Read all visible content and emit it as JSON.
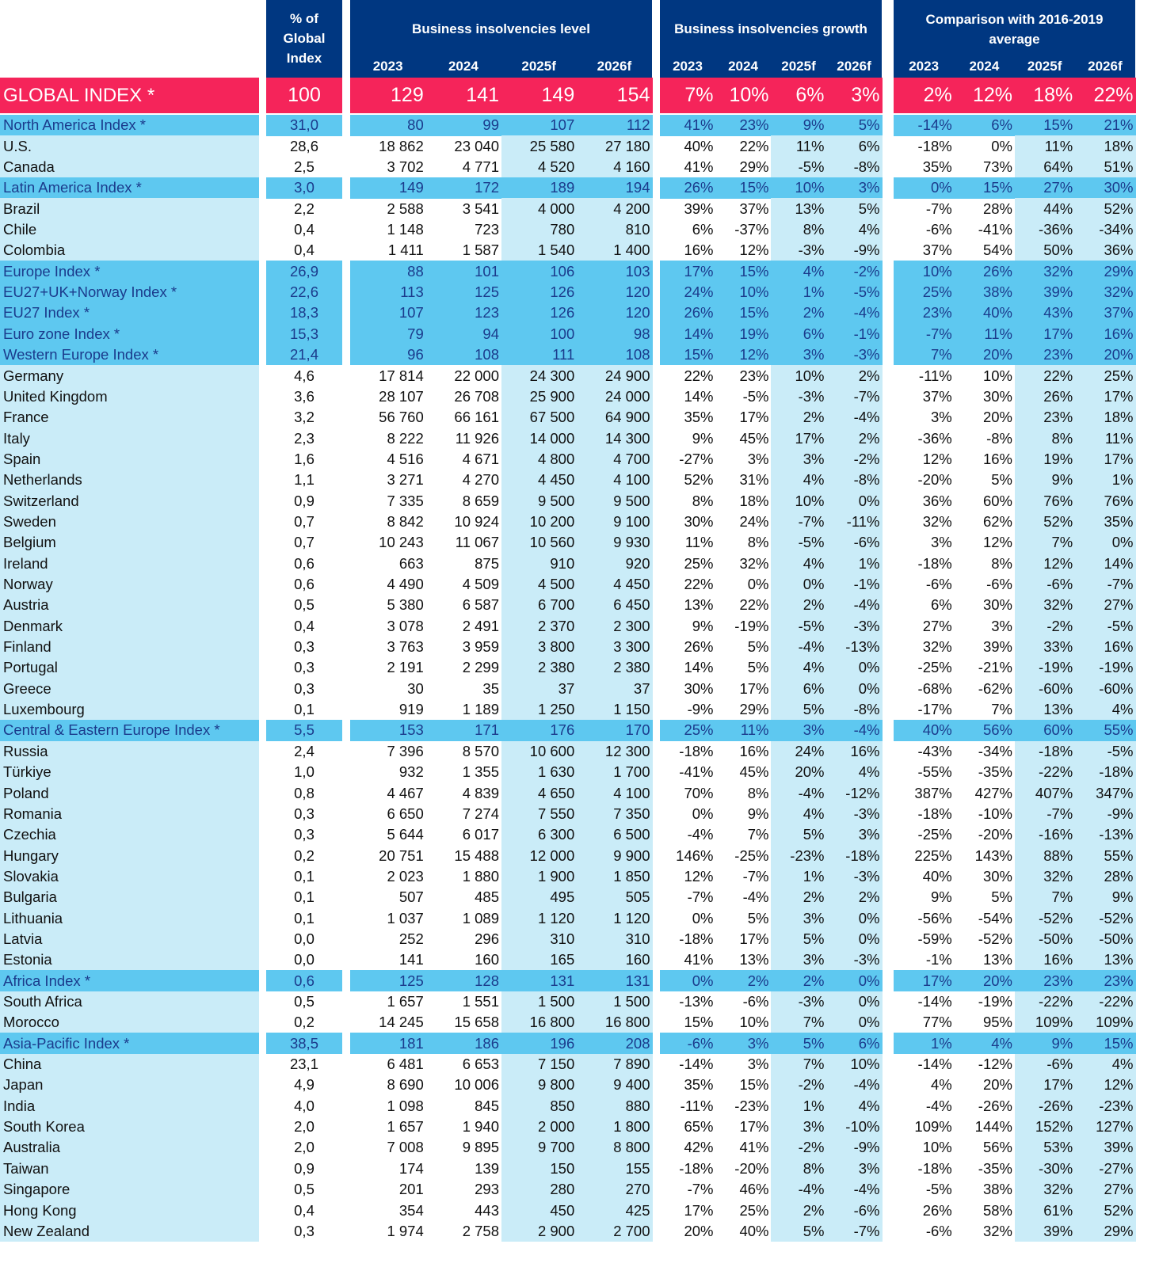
{
  "header": {
    "share_label": [
      "% of",
      "Global",
      "Index"
    ],
    "groups": [
      {
        "title": [
          "Business insolvencies level"
        ],
        "years": [
          "2023",
          "2024",
          "2025f",
          "2026f"
        ]
      },
      {
        "title": [
          "Business insolvencies growth"
        ],
        "years": [
          "2023",
          "2024",
          "2025f",
          "2026f"
        ]
      },
      {
        "title": [
          "Comparison with 2016-2019",
          "average"
        ],
        "years": [
          "2023",
          "2024",
          "2025f",
          "2026f"
        ]
      }
    ]
  },
  "colors": {
    "header": "#003781",
    "global_row": "#f5245a",
    "index_row": "#5ec8f0",
    "country_shade": "#caecf8",
    "index_text": "#1b3b8c"
  },
  "global": {
    "name": "GLOBAL INDEX *",
    "share": "100",
    "level": [
      "129",
      "141",
      "149",
      "154"
    ],
    "growth": [
      "7%",
      "10%",
      "6%",
      "3%"
    ],
    "vs_avg": [
      "2%",
      "12%",
      "18%",
      "22%"
    ]
  },
  "rows": [
    {
      "name": "North America Index *",
      "index": true,
      "share": "31,0",
      "level": [
        "80",
        "99",
        "107",
        "112"
      ],
      "growth": [
        "41%",
        "23%",
        "9%",
        "5%"
      ],
      "vs_avg": [
        "-14%",
        "6%",
        "15%",
        "21%"
      ]
    },
    {
      "name": "U.S.",
      "index": false,
      "share": "28,6",
      "level": [
        "18 862",
        "23 040",
        "25 580",
        "27 180"
      ],
      "growth": [
        "40%",
        "22%",
        "11%",
        "6%"
      ],
      "vs_avg": [
        "-18%",
        "0%",
        "11%",
        "18%"
      ]
    },
    {
      "name": "Canada",
      "index": false,
      "share": "2,5",
      "level": [
        "3 702",
        "4 771",
        "4 520",
        "4 160"
      ],
      "growth": [
        "41%",
        "29%",
        "-5%",
        "-8%"
      ],
      "vs_avg": [
        "35%",
        "73%",
        "64%",
        "51%"
      ]
    },
    {
      "name": "Latin America Index *",
      "index": true,
      "share": "3,0",
      "level": [
        "149",
        "172",
        "189",
        "194"
      ],
      "growth": [
        "26%",
        "15%",
        "10%",
        "3%"
      ],
      "vs_avg": [
        "0%",
        "15%",
        "27%",
        "30%"
      ]
    },
    {
      "name": "Brazil",
      "index": false,
      "share": "2,2",
      "level": [
        "2 588",
        "3 541",
        "4 000",
        "4 200"
      ],
      "growth": [
        "39%",
        "37%",
        "13%",
        "5%"
      ],
      "vs_avg": [
        "-7%",
        "28%",
        "44%",
        "52%"
      ]
    },
    {
      "name": "Chile",
      "index": false,
      "share": "0,4",
      "level": [
        "1 148",
        "723",
        "780",
        "810"
      ],
      "growth": [
        "6%",
        "-37%",
        "8%",
        "4%"
      ],
      "vs_avg": [
        "-6%",
        "-41%",
        "-36%",
        "-34%"
      ]
    },
    {
      "name": "Colombia",
      "index": false,
      "share": "0,4",
      "level": [
        "1 411",
        "1 587",
        "1 540",
        "1 400"
      ],
      "growth": [
        "16%",
        "12%",
        "-3%",
        "-9%"
      ],
      "vs_avg": [
        "37%",
        "54%",
        "50%",
        "36%"
      ]
    },
    {
      "name": "Europe Index *",
      "index": true,
      "share": "26,9",
      "level": [
        "88",
        "101",
        "106",
        "103"
      ],
      "growth": [
        "17%",
        "15%",
        "4%",
        "-2%"
      ],
      "vs_avg": [
        "10%",
        "26%",
        "32%",
        "29%"
      ]
    },
    {
      "name": "EU27+UK+Norway Index *",
      "index": true,
      "share": "22,6",
      "level": [
        "113",
        "125",
        "126",
        "120"
      ],
      "growth": [
        "24%",
        "10%",
        "1%",
        "-5%"
      ],
      "vs_avg": [
        "25%",
        "38%",
        "39%",
        "32%"
      ]
    },
    {
      "name": "EU27 Index *",
      "index": true,
      "share": "18,3",
      "level": [
        "107",
        "123",
        "126",
        "120"
      ],
      "growth": [
        "26%",
        "15%",
        "2%",
        "-4%"
      ],
      "vs_avg": [
        "23%",
        "40%",
        "43%",
        "37%"
      ]
    },
    {
      "name": "Euro zone Index *",
      "index": true,
      "share": "15,3",
      "level": [
        "79",
        "94",
        "100",
        "98"
      ],
      "growth": [
        "14%",
        "19%",
        "6%",
        "-1%"
      ],
      "vs_avg": [
        "-7%",
        "11%",
        "17%",
        "16%"
      ]
    },
    {
      "name": "Western Europe Index *",
      "index": true,
      "share": "21,4",
      "level": [
        "96",
        "108",
        "111",
        "108"
      ],
      "growth": [
        "15%",
        "12%",
        "3%",
        "-3%"
      ],
      "vs_avg": [
        "7%",
        "20%",
        "23%",
        "20%"
      ]
    },
    {
      "name": "Germany",
      "index": false,
      "share": "4,6",
      "level": [
        "17 814",
        "22 000",
        "24 300",
        "24 900"
      ],
      "growth": [
        "22%",
        "23%",
        "10%",
        "2%"
      ],
      "vs_avg": [
        "-11%",
        "10%",
        "22%",
        "25%"
      ]
    },
    {
      "name": "United Kingdom",
      "index": false,
      "share": "3,6",
      "level": [
        "28 107",
        "26 708",
        "25 900",
        "24 000"
      ],
      "growth": [
        "14%",
        "-5%",
        "-3%",
        "-7%"
      ],
      "vs_avg": [
        "37%",
        "30%",
        "26%",
        "17%"
      ]
    },
    {
      "name": "France",
      "index": false,
      "share": "3,2",
      "level": [
        "56 760",
        "66 161",
        "67 500",
        "64 900"
      ],
      "growth": [
        "35%",
        "17%",
        "2%",
        "-4%"
      ],
      "vs_avg": [
        "3%",
        "20%",
        "23%",
        "18%"
      ]
    },
    {
      "name": "Italy",
      "index": false,
      "share": "2,3",
      "level": [
        "8 222",
        "11 926",
        "14 000",
        "14 300"
      ],
      "growth": [
        "9%",
        "45%",
        "17%",
        "2%"
      ],
      "vs_avg": [
        "-36%",
        "-8%",
        "8%",
        "11%"
      ]
    },
    {
      "name": "Spain",
      "index": false,
      "share": "1,6",
      "level": [
        "4 516",
        "4 671",
        "4 800",
        "4 700"
      ],
      "growth": [
        "-27%",
        "3%",
        "3%",
        "-2%"
      ],
      "vs_avg": [
        "12%",
        "16%",
        "19%",
        "17%"
      ]
    },
    {
      "name": "Netherlands",
      "index": false,
      "share": "1,1",
      "level": [
        "3 271",
        "4 270",
        "4 450",
        "4 100"
      ],
      "growth": [
        "52%",
        "31%",
        "4%",
        "-8%"
      ],
      "vs_avg": [
        "-20%",
        "5%",
        "9%",
        "1%"
      ]
    },
    {
      "name": "Switzerland",
      "index": false,
      "share": "0,9",
      "level": [
        "7 335",
        "8 659",
        "9 500",
        "9 500"
      ],
      "growth": [
        "8%",
        "18%",
        "10%",
        "0%"
      ],
      "vs_avg": [
        "36%",
        "60%",
        "76%",
        "76%"
      ]
    },
    {
      "name": "Sweden",
      "index": false,
      "share": "0,7",
      "level": [
        "8 842",
        "10 924",
        "10 200",
        "9 100"
      ],
      "growth": [
        "30%",
        "24%",
        "-7%",
        "-11%"
      ],
      "vs_avg": [
        "32%",
        "62%",
        "52%",
        "35%"
      ]
    },
    {
      "name": "Belgium",
      "index": false,
      "share": "0,7",
      "level": [
        "10 243",
        "11 067",
        "10 560",
        "9 930"
      ],
      "growth": [
        "11%",
        "8%",
        "-5%",
        "-6%"
      ],
      "vs_avg": [
        "3%",
        "12%",
        "7%",
        "0%"
      ]
    },
    {
      "name": "Ireland",
      "index": false,
      "share": "0,6",
      "level": [
        "663",
        "875",
        "910",
        "920"
      ],
      "growth": [
        "25%",
        "32%",
        "4%",
        "1%"
      ],
      "vs_avg": [
        "-18%",
        "8%",
        "12%",
        "14%"
      ]
    },
    {
      "name": "Norway",
      "index": false,
      "share": "0,6",
      "level": [
        "4 490",
        "4 509",
        "4 500",
        "4 450"
      ],
      "growth": [
        "22%",
        "0%",
        "0%",
        "-1%"
      ],
      "vs_avg": [
        "-6%",
        "-6%",
        "-6%",
        "-7%"
      ]
    },
    {
      "name": "Austria",
      "index": false,
      "share": "0,5",
      "level": [
        "5 380",
        "6 587",
        "6 700",
        "6 450"
      ],
      "growth": [
        "13%",
        "22%",
        "2%",
        "-4%"
      ],
      "vs_avg": [
        "6%",
        "30%",
        "32%",
        "27%"
      ]
    },
    {
      "name": "Denmark",
      "index": false,
      "share": "0,4",
      "level": [
        "3 078",
        "2 491",
        "2 370",
        "2 300"
      ],
      "growth": [
        "9%",
        "-19%",
        "-5%",
        "-3%"
      ],
      "vs_avg": [
        "27%",
        "3%",
        "-2%",
        "-5%"
      ]
    },
    {
      "name": "Finland",
      "index": false,
      "share": "0,3",
      "level": [
        "3 763",
        "3 959",
        "3 800",
        "3 300"
      ],
      "growth": [
        "26%",
        "5%",
        "-4%",
        "-13%"
      ],
      "vs_avg": [
        "32%",
        "39%",
        "33%",
        "16%"
      ]
    },
    {
      "name": "Portugal",
      "index": false,
      "share": "0,3",
      "level": [
        "2 191",
        "2 299",
        "2 380",
        "2 380"
      ],
      "growth": [
        "14%",
        "5%",
        "4%",
        "0%"
      ],
      "vs_avg": [
        "-25%",
        "-21%",
        "-19%",
        "-19%"
      ]
    },
    {
      "name": "Greece",
      "index": false,
      "share": "0,3",
      "level": [
        "30",
        "35",
        "37",
        "37"
      ],
      "growth": [
        "30%",
        "17%",
        "6%",
        "0%"
      ],
      "vs_avg": [
        "-68%",
        "-62%",
        "-60%",
        "-60%"
      ]
    },
    {
      "name": "Luxembourg",
      "index": false,
      "share": "0,1",
      "level": [
        "919",
        "1 189",
        "1 250",
        "1 150"
      ],
      "growth": [
        "-9%",
        "29%",
        "5%",
        "-8%"
      ],
      "vs_avg": [
        "-17%",
        "7%",
        "13%",
        "4%"
      ]
    },
    {
      "name": "Central & Eastern Europe Index *",
      "index": true,
      "share": "5,5",
      "level": [
        "153",
        "171",
        "176",
        "170"
      ],
      "growth": [
        "25%",
        "11%",
        "3%",
        "-4%"
      ],
      "vs_avg": [
        "40%",
        "56%",
        "60%",
        "55%"
      ]
    },
    {
      "name": "Russia",
      "index": false,
      "share": "2,4",
      "level": [
        "7 396",
        "8 570",
        "10 600",
        "12 300"
      ],
      "growth": [
        "-18%",
        "16%",
        "24%",
        "16%"
      ],
      "vs_avg": [
        "-43%",
        "-34%",
        "-18%",
        "-5%"
      ]
    },
    {
      "name": "Türkiye",
      "index": false,
      "share": "1,0",
      "level": [
        "932",
        "1 355",
        "1 630",
        "1 700"
      ],
      "growth": [
        "-41%",
        "45%",
        "20%",
        "4%"
      ],
      "vs_avg": [
        "-55%",
        "-35%",
        "-22%",
        "-18%"
      ]
    },
    {
      "name": "Poland",
      "index": false,
      "share": "0,8",
      "level": [
        "4 467",
        "4 839",
        "4 650",
        "4 100"
      ],
      "growth": [
        "70%",
        "8%",
        "-4%",
        "-12%"
      ],
      "vs_avg": [
        "387%",
        "427%",
        "407%",
        "347%"
      ]
    },
    {
      "name": "Romania",
      "index": false,
      "share": "0,3",
      "level": [
        "6 650",
        "7 274",
        "7 550",
        "7 350"
      ],
      "growth": [
        "0%",
        "9%",
        "4%",
        "-3%"
      ],
      "vs_avg": [
        "-18%",
        "-10%",
        "-7%",
        "-9%"
      ]
    },
    {
      "name": "Czechia",
      "index": false,
      "share": "0,3",
      "level": [
        "5 644",
        "6 017",
        "6 300",
        "6 500"
      ],
      "growth": [
        "-4%",
        "7%",
        "5%",
        "3%"
      ],
      "vs_avg": [
        "-25%",
        "-20%",
        "-16%",
        "-13%"
      ]
    },
    {
      "name": "Hungary",
      "index": false,
      "share": "0,2",
      "level": [
        "20 751",
        "15 488",
        "12 000",
        "9 900"
      ],
      "growth": [
        "146%",
        "-25%",
        "-23%",
        "-18%"
      ],
      "vs_avg": [
        "225%",
        "143%",
        "88%",
        "55%"
      ]
    },
    {
      "name": "Slovakia",
      "index": false,
      "share": "0,1",
      "level": [
        "2 023",
        "1 880",
        "1 900",
        "1 850"
      ],
      "growth": [
        "12%",
        "-7%",
        "1%",
        "-3%"
      ],
      "vs_avg": [
        "40%",
        "30%",
        "32%",
        "28%"
      ]
    },
    {
      "name": "Bulgaria",
      "index": false,
      "share": "0,1",
      "level": [
        "507",
        "485",
        "495",
        "505"
      ],
      "growth": [
        "-7%",
        "-4%",
        "2%",
        "2%"
      ],
      "vs_avg": [
        "9%",
        "5%",
        "7%",
        "9%"
      ]
    },
    {
      "name": "Lithuania",
      "index": false,
      "share": "0,1",
      "level": [
        "1 037",
        "1 089",
        "1 120",
        "1 120"
      ],
      "growth": [
        "0%",
        "5%",
        "3%",
        "0%"
      ],
      "vs_avg": [
        "-56%",
        "-54%",
        "-52%",
        "-52%"
      ]
    },
    {
      "name": "Latvia",
      "index": false,
      "share": "0,0",
      "level": [
        "252",
        "296",
        "310",
        "310"
      ],
      "growth": [
        "-18%",
        "17%",
        "5%",
        "0%"
      ],
      "vs_avg": [
        "-59%",
        "-52%",
        "-50%",
        "-50%"
      ]
    },
    {
      "name": "Estonia",
      "index": false,
      "share": "0,0",
      "level": [
        "141",
        "160",
        "165",
        "160"
      ],
      "growth": [
        "41%",
        "13%",
        "3%",
        "-3%"
      ],
      "vs_avg": [
        "-1%",
        "13%",
        "16%",
        "13%"
      ]
    },
    {
      "name": "Africa Index *",
      "index": true,
      "share": "0,6",
      "level": [
        "125",
        "128",
        "131",
        "131"
      ],
      "growth": [
        "0%",
        "2%",
        "2%",
        "0%"
      ],
      "vs_avg": [
        "17%",
        "20%",
        "23%",
        "23%"
      ]
    },
    {
      "name": "South Africa",
      "index": false,
      "share": "0,5",
      "level": [
        "1 657",
        "1 551",
        "1 500",
        "1 500"
      ],
      "growth": [
        "-13%",
        "-6%",
        "-3%",
        "0%"
      ],
      "vs_avg": [
        "-14%",
        "-19%",
        "-22%",
        "-22%"
      ]
    },
    {
      "name": "Morocco",
      "index": false,
      "share": "0,2",
      "level": [
        "14 245",
        "15 658",
        "16 800",
        "16 800"
      ],
      "growth": [
        "15%",
        "10%",
        "7%",
        "0%"
      ],
      "vs_avg": [
        "77%",
        "95%",
        "109%",
        "109%"
      ]
    },
    {
      "name": "Asia-Pacific Index *",
      "index": true,
      "share": "38,5",
      "level": [
        "181",
        "186",
        "196",
        "208"
      ],
      "growth": [
        "-6%",
        "3%",
        "5%",
        "6%"
      ],
      "vs_avg": [
        "1%",
        "4%",
        "9%",
        "15%"
      ]
    },
    {
      "name": "China",
      "index": false,
      "share": "23,1",
      "level": [
        "6 481",
        "6 653",
        "7 150",
        "7 890"
      ],
      "growth": [
        "-14%",
        "3%",
        "7%",
        "10%"
      ],
      "vs_avg": [
        "-14%",
        "-12%",
        "-6%",
        "4%"
      ]
    },
    {
      "name": "Japan",
      "index": false,
      "share": "4,9",
      "level": [
        "8 690",
        "10 006",
        "9 800",
        "9 400"
      ],
      "growth": [
        "35%",
        "15%",
        "-2%",
        "-4%"
      ],
      "vs_avg": [
        "4%",
        "20%",
        "17%",
        "12%"
      ]
    },
    {
      "name": "India",
      "index": false,
      "share": "4,0",
      "level": [
        "1 098",
        "845",
        "850",
        "880"
      ],
      "growth": [
        "-11%",
        "-23%",
        "1%",
        "4%"
      ],
      "vs_avg": [
        "-4%",
        "-26%",
        "-26%",
        "-23%"
      ]
    },
    {
      "name": "South Korea",
      "index": false,
      "share": "2,0",
      "level": [
        "1 657",
        "1 940",
        "2 000",
        "1 800"
      ],
      "growth": [
        "65%",
        "17%",
        "3%",
        "-10%"
      ],
      "vs_avg": [
        "109%",
        "144%",
        "152%",
        "127%"
      ]
    },
    {
      "name": "Australia",
      "index": false,
      "share": "2,0",
      "level": [
        "7 008",
        "9 895",
        "9 700",
        "8 800"
      ],
      "growth": [
        "42%",
        "41%",
        "-2%",
        "-9%"
      ],
      "vs_avg": [
        "10%",
        "56%",
        "53%",
        "39%"
      ]
    },
    {
      "name": "Taiwan",
      "index": false,
      "share": "0,9",
      "level": [
        "174",
        "139",
        "150",
        "155"
      ],
      "growth": [
        "-18%",
        "-20%",
        "8%",
        "3%"
      ],
      "vs_avg": [
        "-18%",
        "-35%",
        "-30%",
        "-27%"
      ]
    },
    {
      "name": "Singapore",
      "index": false,
      "share": "0,5",
      "level": [
        "201",
        "293",
        "280",
        "270"
      ],
      "growth": [
        "-7%",
        "46%",
        "-4%",
        "-4%"
      ],
      "vs_avg": [
        "-5%",
        "38%",
        "32%",
        "27%"
      ]
    },
    {
      "name": "Hong Kong",
      "index": false,
      "share": "0,4",
      "level": [
        "354",
        "443",
        "450",
        "425"
      ],
      "growth": [
        "17%",
        "25%",
        "2%",
        "-6%"
      ],
      "vs_avg": [
        "26%",
        "58%",
        "61%",
        "52%"
      ]
    },
    {
      "name": "New Zealand",
      "index": false,
      "share": "0,3",
      "level": [
        "1 974",
        "2 758",
        "2 900",
        "2 700"
      ],
      "growth": [
        "20%",
        "40%",
        "5%",
        "-7%"
      ],
      "vs_avg": [
        "-6%",
        "32%",
        "39%",
        "29%"
      ]
    }
  ]
}
